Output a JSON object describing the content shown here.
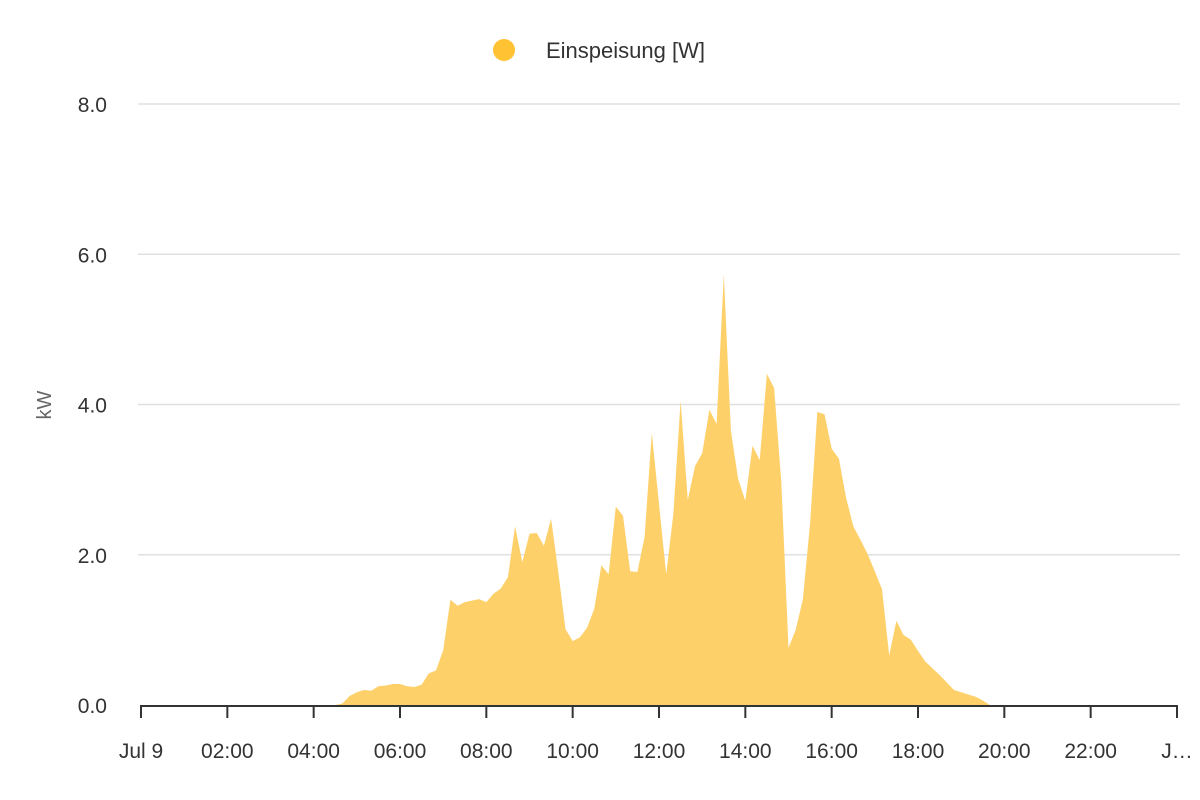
{
  "chart_data": {
    "type": "area",
    "title": "",
    "xlabel": "",
    "ylabel": "kW",
    "ylim": [
      0,
      8
    ],
    "xlim_hours": [
      0,
      24
    ],
    "grid": true,
    "legend_position": "top-center",
    "y_ticks": [
      "0.0",
      "2.0",
      "4.0",
      "6.0",
      "8.0"
    ],
    "x_ticks": [
      "Jul 9",
      "02:00",
      "04:00",
      "06:00",
      "08:00",
      "10:00",
      "12:00",
      "14:00",
      "16:00",
      "18:00",
      "20:00",
      "22:00",
      "J…"
    ],
    "series": [
      {
        "name": "Einspeisung [W]",
        "color": "#FFC233",
        "fill_color": "#FDD06A",
        "x": [
          "04:30",
          "04:40",
          "04:50",
          "05:00",
          "05:10",
          "05:20",
          "05:30",
          "05:40",
          "05:50",
          "06:00",
          "06:10",
          "06:20",
          "06:30",
          "06:40",
          "06:50",
          "07:00",
          "07:10",
          "07:20",
          "07:30",
          "07:40",
          "07:50",
          "08:00",
          "08:10",
          "08:20",
          "08:30",
          "08:40",
          "08:50",
          "09:00",
          "09:10",
          "09:20",
          "09:30",
          "09:40",
          "09:50",
          "10:00",
          "10:10",
          "10:20",
          "10:30",
          "10:40",
          "10:50",
          "11:00",
          "11:10",
          "11:20",
          "11:30",
          "11:40",
          "11:50",
          "12:00",
          "12:10",
          "12:20",
          "12:30",
          "12:40",
          "12:50",
          "13:00",
          "13:10",
          "13:20",
          "13:30",
          "13:40",
          "13:50",
          "14:00",
          "14:10",
          "14:20",
          "14:30",
          "14:40",
          "14:50",
          "15:00",
          "15:10",
          "15:20",
          "15:30",
          "15:40",
          "15:50",
          "16:00",
          "16:10",
          "16:20",
          "16:30",
          "16:40",
          "16:50",
          "17:00",
          "17:10",
          "17:20",
          "17:30",
          "17:40",
          "17:50",
          "18:00",
          "18:10",
          "18:20",
          "18:30",
          "18:40",
          "18:50",
          "19:00",
          "19:10",
          "19:20",
          "19:30",
          "19:40"
        ],
        "values": [
          0,
          0.02,
          0.12,
          0.17,
          0.2,
          0.19,
          0.25,
          0.26,
          0.28,
          0.28,
          0.25,
          0.24,
          0.27,
          0.42,
          0.46,
          0.73,
          1.4,
          1.32,
          1.37,
          1.39,
          1.41,
          1.37,
          1.48,
          1.55,
          1.7,
          2.38,
          1.9,
          2.28,
          2.29,
          2.12,
          2.48,
          1.77,
          1.01,
          0.85,
          0.9,
          1.03,
          1.28,
          1.86,
          1.74,
          2.64,
          2.52,
          1.78,
          1.77,
          2.24,
          3.62,
          2.68,
          1.74,
          2.55,
          4.05,
          2.73,
          3.18,
          3.35,
          3.93,
          3.74,
          5.73,
          3.65,
          3.01,
          2.72,
          3.45,
          3.26,
          4.41,
          4.22,
          2.97,
          0.76,
          1.0,
          1.41,
          2.42,
          3.9,
          3.87,
          3.41,
          3.28,
          2.76,
          2.38,
          2.2,
          2.01,
          1.78,
          1.54,
          0.66,
          1.12,
          0.93,
          0.87,
          0.72,
          0.58,
          0.49,
          0.4,
          0.3,
          0.2,
          0.17,
          0.14,
          0.11,
          0.06,
          0
        ]
      }
    ]
  }
}
